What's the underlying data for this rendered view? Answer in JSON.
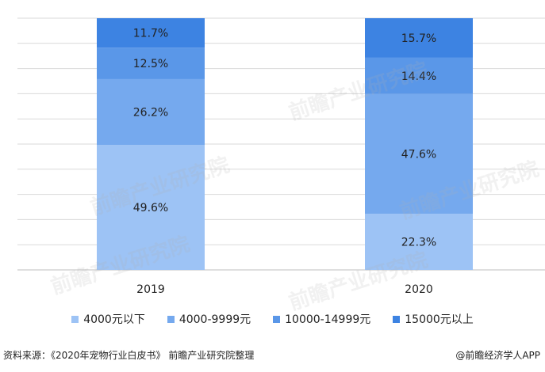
{
  "chart_data": {
    "type": "bar",
    "stacked": true,
    "categories": [
      "2019",
      "2020"
    ],
    "series": [
      {
        "name": "4000元以下",
        "values": [
          49.6,
          22.3
        ],
        "labels": [
          "49.6%",
          "22.3%"
        ],
        "color": "#9dc3f5"
      },
      {
        "name": "4000-9999元",
        "values": [
          26.2,
          47.6
        ],
        "labels": [
          "26.2%",
          "47.6%"
        ],
        "color": "#75a9ee"
      },
      {
        "name": "10000-14999元",
        "values": [
          12.5,
          14.4
        ],
        "labels": [
          "12.5%",
          "14.4%"
        ],
        "color": "#5a97e8"
      },
      {
        "name": "15000元以上",
        "values": [
          11.7,
          15.7
        ],
        "labels": [
          "11.7%",
          "15.7%"
        ],
        "color": "#3d83e2"
      }
    ],
    "ylim": [
      0,
      100
    ],
    "grid": true,
    "legend_position": "bottom"
  },
  "footer": {
    "source": "资料来源：《2020年宠物行业白皮书》 前瞻产业研究院整理",
    "credit": "@前瞻经济学人APP"
  },
  "watermark": "前瞻产业研究院"
}
